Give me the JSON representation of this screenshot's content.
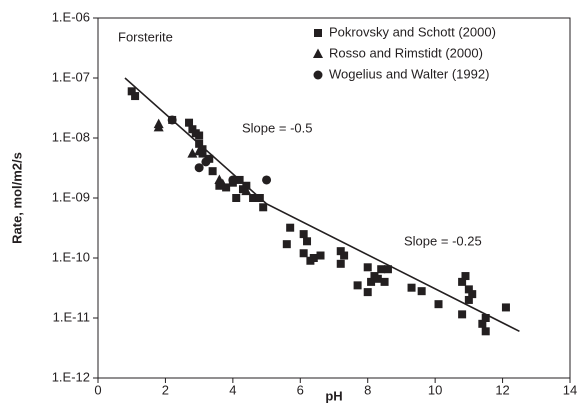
{
  "chart_data": {
    "type": "scatter",
    "label": "Forsterite",
    "x_label": "pH",
    "y_label": "Rate, mol/m2/s",
    "xlim": [
      0,
      14
    ],
    "xticks": [
      0,
      2,
      4,
      6,
      8,
      10,
      12,
      14
    ],
    "ylim": [
      1e-12,
      1e-06
    ],
    "log_y": true,
    "yticks": [
      {
        "value": 1e-12,
        "label": "1.E-12"
      },
      {
        "value": 1e-11,
        "label": "1.E-11"
      },
      {
        "value": 1e-10,
        "label": "1.E-10"
      },
      {
        "value": 1e-09,
        "label": "1.E-09"
      },
      {
        "value": 1e-08,
        "label": "1.E-08"
      },
      {
        "value": 1e-07,
        "label": "1.E-07"
      },
      {
        "value": 1e-06,
        "label": "1.E-06"
      }
    ],
    "legend": "upper right",
    "annotations": [
      "Slope = -0.5",
      "Slope = -0.25"
    ],
    "series": [
      {
        "name": "Pokrovsky and Schott (2000)",
        "marker": "square",
        "color": "#231f20",
        "x": [
          1.0,
          1.1,
          2.2,
          2.7,
          2.8,
          2.9,
          3.0,
          3.0,
          3.1,
          3.1,
          3.3,
          3.4,
          3.6,
          3.8,
          4.0,
          4.1,
          4.2,
          4.3,
          4.4,
          4.6,
          4.8,
          4.9,
          5.6,
          5.7,
          6.1,
          6.1,
          6.2,
          6.3,
          6.4,
          6.6,
          7.2,
          7.2,
          7.3,
          7.7,
          8.0,
          8.0,
          8.1,
          8.2,
          8.3,
          8.4,
          8.5,
          8.6,
          9.3,
          9.6,
          10.1,
          10.8,
          10.8,
          10.9,
          11.0,
          11.0,
          11.1,
          11.4,
          11.5,
          11.5,
          12.1
        ],
        "values": [
          6e-08,
          5e-08,
          2e-08,
          1.8e-08,
          1.4e-08,
          1.2e-08,
          1.1e-08,
          8e-09,
          6.5e-09,
          5.5e-09,
          4.5e-09,
          2.8e-09,
          1.6e-09,
          1.5e-09,
          1.8e-09,
          1e-09,
          2e-09,
          1.4e-09,
          1.6e-09,
          1e-09,
          1e-09,
          7e-10,
          1.7e-10,
          3.2e-10,
          2.5e-10,
          1.2e-10,
          1.9e-10,
          9e-11,
          1e-10,
          1.1e-10,
          1.3e-10,
          8e-11,
          1.1e-10,
          3.5e-11,
          2.7e-11,
          7e-11,
          4e-11,
          5e-11,
          4.5e-11,
          6.5e-11,
          4e-11,
          6.5e-11,
          3.2e-11,
          2.8e-11,
          1.7e-11,
          1.15e-11,
          4e-11,
          5e-11,
          3e-11,
          2e-11,
          2.5e-11,
          8e-12,
          6e-12,
          1e-11,
          1.5e-11
        ]
      },
      {
        "name": "Rosso and Rimstidt (2000)",
        "marker": "triangle",
        "color": "#231f20",
        "x": [
          1.8,
          1.8,
          2.8,
          3.0,
          3.6,
          3.7,
          4.4
        ],
        "values": [
          1.5e-08,
          1.7e-08,
          5.5e-09,
          6e-09,
          2e-09,
          1.7e-09,
          1.3e-09
        ]
      },
      {
        "name": "Wogelius and Walter (1992)",
        "marker": "circle",
        "color": "#231f20",
        "x": [
          2.2,
          3.0,
          3.2,
          4.0,
          5.0
        ],
        "values": [
          2e-08,
          3.2e-09,
          4e-09,
          2e-09,
          2e-09
        ]
      }
    ],
    "fit": {
      "color": "#231f20",
      "x": [
        0.8,
        5.0,
        12.5
      ],
      "values": [
        1e-07,
        8e-10,
        6e-12
      ]
    }
  }
}
